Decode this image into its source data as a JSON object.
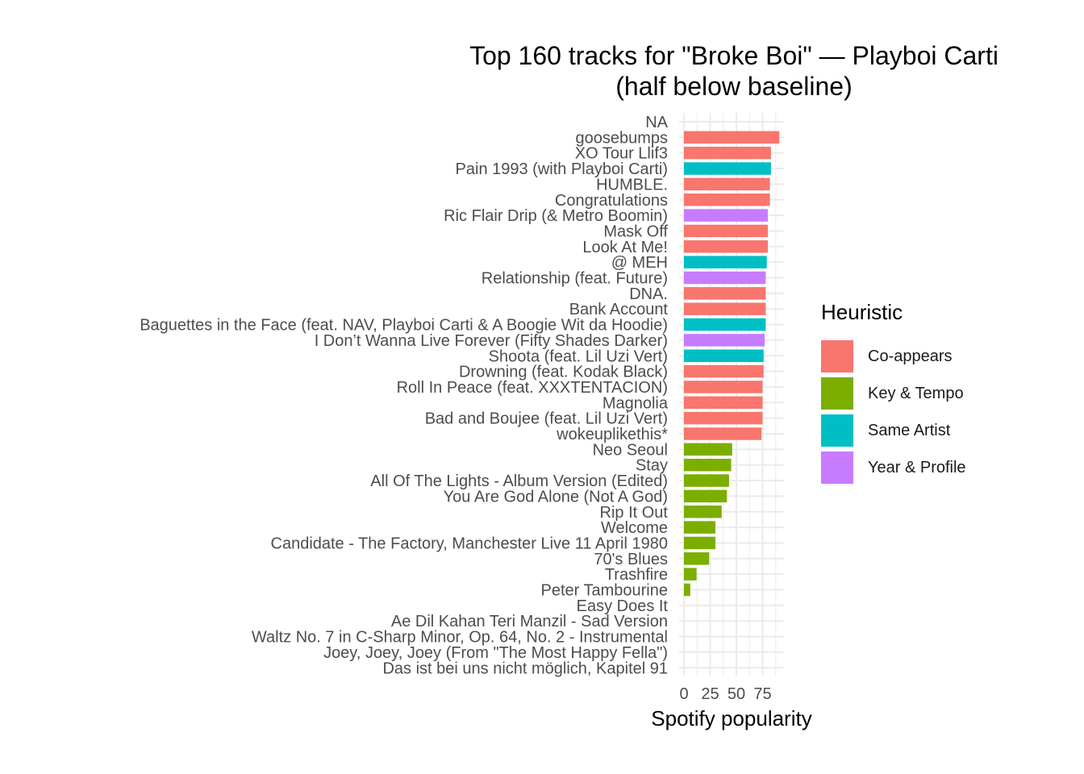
{
  "chart_data": {
    "type": "bar",
    "orientation": "horizontal",
    "title_lines": [
      "Top 160 tracks for \"Broke Boi\" — Playboi Carti",
      "(half below baseline)"
    ],
    "xlabel": "Spotify popularity",
    "ylabel": "",
    "xlim": [
      0,
      100
    ],
    "x_ticks": [
      0,
      25,
      50,
      75
    ],
    "grid": true,
    "legend": {
      "title": "Heuristic",
      "placement": "right",
      "entries": [
        {
          "label": "Co-appears",
          "color": "#F8766D"
        },
        {
          "label": "Key & Tempo",
          "color": "#7CAE00"
        },
        {
          "label": "Same Artist",
          "color": "#00BFC4"
        },
        {
          "label": "Year & Profile",
          "color": "#C77CFF"
        }
      ]
    },
    "bars": [
      {
        "track": "NA",
        "popularity": null,
        "heuristic": ""
      },
      {
        "track": "goosebumps",
        "popularity": 91,
        "heuristic": "Co-appears"
      },
      {
        "track": "XO Tour Llif3",
        "popularity": 83,
        "heuristic": "Co-appears"
      },
      {
        "track": "Pain 1993 (with Playboi Carti)",
        "popularity": 83,
        "heuristic": "Same Artist"
      },
      {
        "track": "HUMBLE.",
        "popularity": 82,
        "heuristic": "Co-appears"
      },
      {
        "track": "Congratulations",
        "popularity": 82,
        "heuristic": "Co-appears"
      },
      {
        "track": "Ric Flair Drip (& Metro Boomin)",
        "popularity": 80,
        "heuristic": "Year & Profile"
      },
      {
        "track": "Mask Off",
        "popularity": 80,
        "heuristic": "Co-appears"
      },
      {
        "track": "Look At Me!",
        "popularity": 80,
        "heuristic": "Co-appears"
      },
      {
        "track": "@ MEH",
        "popularity": 79,
        "heuristic": "Same Artist"
      },
      {
        "track": "Relationship (feat. Future)",
        "popularity": 78,
        "heuristic": "Year & Profile"
      },
      {
        "track": "DNA.",
        "popularity": 78,
        "heuristic": "Co-appears"
      },
      {
        "track": "Bank Account",
        "popularity": 78,
        "heuristic": "Co-appears"
      },
      {
        "track": "Baguettes in the Face (feat. NAV, Playboi Carti & A Boogie Wit da Hoodie)",
        "popularity": 78,
        "heuristic": "Same Artist"
      },
      {
        "track": "I Don’t Wanna Live Forever (Fifty Shades Darker)",
        "popularity": 77,
        "heuristic": "Year & Profile"
      },
      {
        "track": "Shoota (feat. Lil Uzi Vert)",
        "popularity": 76,
        "heuristic": "Same Artist"
      },
      {
        "track": "Drowning (feat. Kodak Black)",
        "popularity": 76,
        "heuristic": "Co-appears"
      },
      {
        "track": "Roll In Peace (feat. XXXTENTACION)",
        "popularity": 75,
        "heuristic": "Co-appears"
      },
      {
        "track": "Magnolia",
        "popularity": 75,
        "heuristic": "Co-appears"
      },
      {
        "track": "Bad and Boujee (feat. Lil Uzi Vert)",
        "popularity": 75,
        "heuristic": "Co-appears"
      },
      {
        "track": "wokeuplikethis*",
        "popularity": 74,
        "heuristic": "Co-appears"
      },
      {
        "track": "Neo Seoul",
        "popularity": 46,
        "heuristic": "Key & Tempo"
      },
      {
        "track": "Stay",
        "popularity": 45,
        "heuristic": "Key & Tempo"
      },
      {
        "track": "All Of The Lights - Album Version (Edited)",
        "popularity": 43,
        "heuristic": "Key & Tempo"
      },
      {
        "track": "You Are God Alone (Not A God)",
        "popularity": 41,
        "heuristic": "Key & Tempo"
      },
      {
        "track": "Rip It Out",
        "popularity": 36,
        "heuristic": "Key & Tempo"
      },
      {
        "track": "Welcome",
        "popularity": 30,
        "heuristic": "Key & Tempo"
      },
      {
        "track": "Candidate - The Factory, Manchester Live 11 April 1980",
        "popularity": 30,
        "heuristic": "Key & Tempo"
      },
      {
        "track": "70's Blues",
        "popularity": 24,
        "heuristic": "Key & Tempo"
      },
      {
        "track": "Trashfire",
        "popularity": 12,
        "heuristic": "Key & Tempo"
      },
      {
        "track": "Peter Tambourine",
        "popularity": 6,
        "heuristic": "Key & Tempo"
      },
      {
        "track": "Easy Does It",
        "popularity": 0,
        "heuristic": "Key & Tempo"
      },
      {
        "track": "Ae Dil Kahan Teri Manzil - Sad Version",
        "popularity": 0,
        "heuristic": "Key & Tempo"
      },
      {
        "track": "Waltz No. 7 in C-Sharp Minor, Op. 64, No. 2 - Instrumental",
        "popularity": 0,
        "heuristic": "Key & Tempo"
      },
      {
        "track": "Joey, Joey, Joey (From \"The Most Happy Fella\")",
        "popularity": 0,
        "heuristic": "Key & Tempo"
      },
      {
        "track": "Das ist bei uns nicht möglich, Kapitel 91",
        "popularity": 0,
        "heuristic": "Key & Tempo"
      }
    ]
  }
}
